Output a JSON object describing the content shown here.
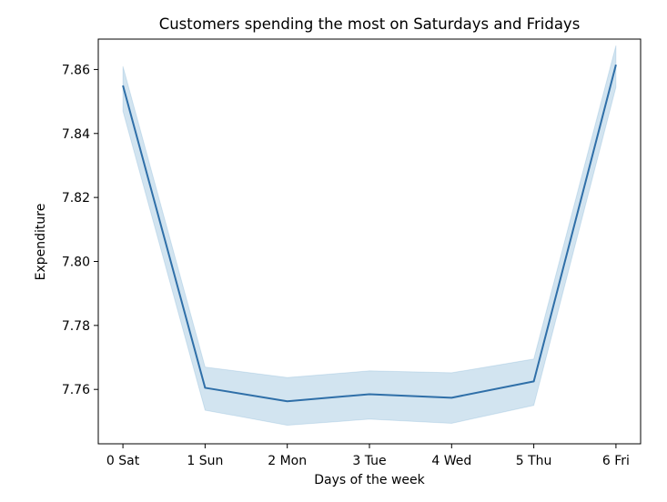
{
  "chart_data": {
    "type": "line",
    "title": "Customers spending the most on Saturdays and Fridays",
    "xlabel": "Days of the week",
    "ylabel": "Expenditure",
    "categories": [
      "0 Sat",
      "1 Sun",
      "2 Mon",
      "3 Tue",
      "4 Wed",
      "5 Thu",
      "6 Fri"
    ],
    "x": [
      0,
      1,
      2,
      3,
      4,
      5,
      6
    ],
    "series": [
      {
        "values": [
          7.855,
          7.7605,
          7.7563,
          7.7585,
          7.7574,
          7.7625,
          7.8615
        ],
        "ci_upper": [
          7.861,
          7.767,
          7.7637,
          7.7658,
          7.7652,
          7.7695,
          7.8675
        ],
        "ci_lower": [
          7.847,
          7.7535,
          7.7488,
          7.7507,
          7.7494,
          7.755,
          7.8545
        ]
      }
    ],
    "ylim": [
      7.743,
      7.8695
    ],
    "xlim": [
      -0.3,
      6.3
    ],
    "yticks": [
      7.76,
      7.78,
      7.8,
      7.82,
      7.84,
      7.86
    ],
    "ytick_labels": [
      "7.76",
      "7.78",
      "7.80",
      "7.82",
      "7.84",
      "7.86"
    ],
    "grid": false,
    "colors": {
      "line": "#2f6fa8",
      "band": "#1f77b4"
    }
  }
}
